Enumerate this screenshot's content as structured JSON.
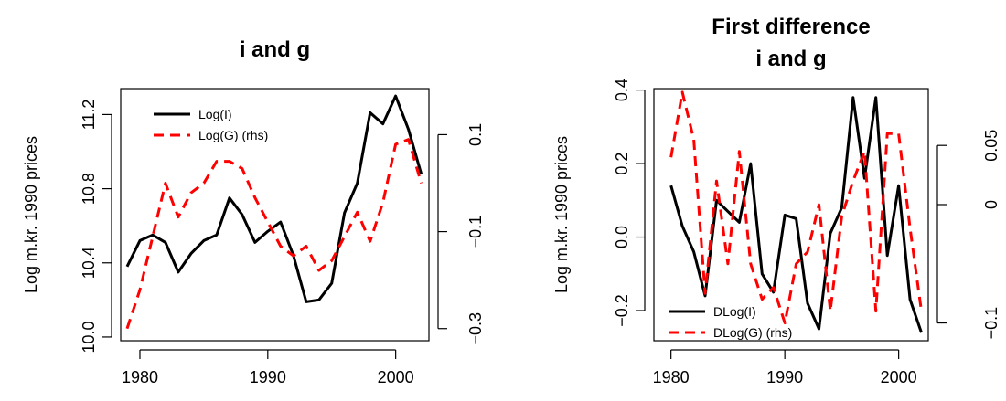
{
  "chart_data": [
    {
      "type": "line",
      "title_lines": [
        "i and g"
      ],
      "xlabel": "",
      "ylabel": "Log m.kr. 1990 prices",
      "xlim": [
        1978.5,
        2002.6
      ],
      "ylim": [
        9.98,
        11.34
      ],
      "y2lim": [
        -0.325,
        0.195
      ],
      "x_ticks": [
        1980,
        1990,
        2000
      ],
      "x_tick_labels": [
        "1980",
        "1990",
        "2000"
      ],
      "y_ticks": [
        10.0,
        10.4,
        10.8,
        11.2
      ],
      "y_tick_labels": [
        "10.0",
        "10.4",
        "10.8",
        "11.2"
      ],
      "y2_ticks": [
        -0.3,
        -0.1,
        0.1
      ],
      "y2_tick_labels": [
        "−0.3",
        "−0.1",
        "0.1"
      ],
      "legend_position": "top-left",
      "series": [
        {
          "name": "Log(I)",
          "axis": "left",
          "color": "#000000",
          "dashed": false,
          "x": [
            1979,
            1980,
            1981,
            1982,
            1983,
            1984,
            1985,
            1986,
            1987,
            1988,
            1989,
            1990,
            1991,
            1992,
            1993,
            1994,
            1995,
            1996,
            1997,
            1998,
            1999,
            2000,
            2001,
            2002
          ],
          "y": [
            10.38,
            10.52,
            10.55,
            10.51,
            10.35,
            10.45,
            10.52,
            10.55,
            10.75,
            10.66,
            10.51,
            10.57,
            10.62,
            10.44,
            10.19,
            10.2,
            10.29,
            10.67,
            10.83,
            11.21,
            11.15,
            11.3,
            11.12,
            10.88
          ]
        },
        {
          "name": "Log(G) (rhs)",
          "axis": "right",
          "color": "#ff0000",
          "dashed": true,
          "x": [
            1979,
            1980,
            1981,
            1982,
            1983,
            1984,
            1985,
            1986,
            1987,
            1988,
            1989,
            1990,
            1991,
            1992,
            1993,
            1994,
            1995,
            1996,
            1997,
            1998,
            1999,
            2000,
            2001,
            2002
          ],
          "y": [
            -0.3,
            -0.22,
            -0.11,
            0.0,
            -0.07,
            -0.02,
            0.0,
            0.045,
            0.045,
            0.03,
            -0.03,
            -0.08,
            -0.13,
            -0.15,
            -0.13,
            -0.18,
            -0.16,
            -0.11,
            -0.06,
            -0.12,
            -0.04,
            0.08,
            0.09,
            0.0
          ]
        }
      ]
    },
    {
      "type": "line",
      "title_lines": [
        "First difference",
        "i and g"
      ],
      "xlabel": "",
      "ylabel": "Log m.kr. 1990 prices",
      "xlim": [
        1978.5,
        2002.6
      ],
      "ylim": [
        -0.282,
        0.404
      ],
      "y2lim": [
        -0.115,
        0.098
      ],
      "x_ticks": [
        1980,
        1990,
        2000
      ],
      "x_tick_labels": [
        "1980",
        "1990",
        "2000"
      ],
      "y_ticks": [
        -0.2,
        0.0,
        0.2,
        0.4
      ],
      "y_tick_labels": [
        "−0.2",
        "0.0",
        "0.2",
        "0.4"
      ],
      "y2_ticks": [
        -0.1,
        0.0,
        0.05
      ],
      "y2_tick_labels": [
        "−0.1",
        "0",
        "0.05"
      ],
      "legend_position": "bottom-left",
      "series": [
        {
          "name": "DLog(I)",
          "axis": "left",
          "color": "#000000",
          "dashed": false,
          "x": [
            1980,
            1981,
            1982,
            1983,
            1984,
            1985,
            1986,
            1987,
            1988,
            1989,
            1990,
            1991,
            1992,
            1993,
            1994,
            1995,
            1996,
            1997,
            1998,
            1999,
            2000,
            2001,
            2002
          ],
          "y": [
            0.14,
            0.03,
            -0.04,
            -0.16,
            0.1,
            0.07,
            0.04,
            0.2,
            -0.1,
            -0.15,
            0.06,
            0.05,
            -0.18,
            -0.25,
            0.01,
            0.08,
            0.38,
            0.16,
            0.38,
            -0.05,
            0.14,
            -0.17,
            -0.26
          ]
        },
        {
          "name": "DLog(G) (rhs)",
          "axis": "right",
          "color": "#ff0000",
          "dashed": true,
          "x": [
            1980,
            1981,
            1982,
            1983,
            1984,
            1985,
            1986,
            1987,
            1988,
            1989,
            1990,
            1991,
            1992,
            1993,
            1994,
            1995,
            1996,
            1997,
            1998,
            1999,
            2000,
            2001,
            2002
          ],
          "y": [
            0.04,
            0.095,
            0.055,
            -0.075,
            0.02,
            -0.05,
            0.045,
            -0.05,
            -0.08,
            -0.07,
            -0.1,
            -0.05,
            -0.04,
            0.0,
            -0.09,
            -0.01,
            0.02,
            0.045,
            -0.09,
            0.06,
            0.06,
            -0.02,
            -0.09
          ]
        }
      ]
    }
  ]
}
